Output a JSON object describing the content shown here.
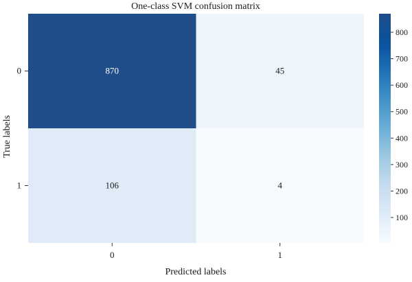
{
  "chart_data": {
    "type": "heatmap",
    "title": "One-class SVM confusion matrix",
    "xlabel": "Predicted labels",
    "ylabel": "True labels",
    "x_categories": [
      "0",
      "1"
    ],
    "y_categories": [
      "0",
      "1"
    ],
    "values": [
      [
        870,
        45
      ],
      [
        106,
        4
      ]
    ],
    "colormap": "Blues",
    "color_range": [
      4,
      870
    ],
    "colorbar_ticks": [
      100,
      200,
      300,
      400,
      500,
      600,
      700,
      800
    ],
    "colorbar_tick_labels": [
      "100",
      "200",
      "300",
      "400",
      "500",
      "600",
      "700",
      "800"
    ],
    "colors": {
      "min": "#f7fbff",
      "max": "#1f4e8a"
    }
  }
}
